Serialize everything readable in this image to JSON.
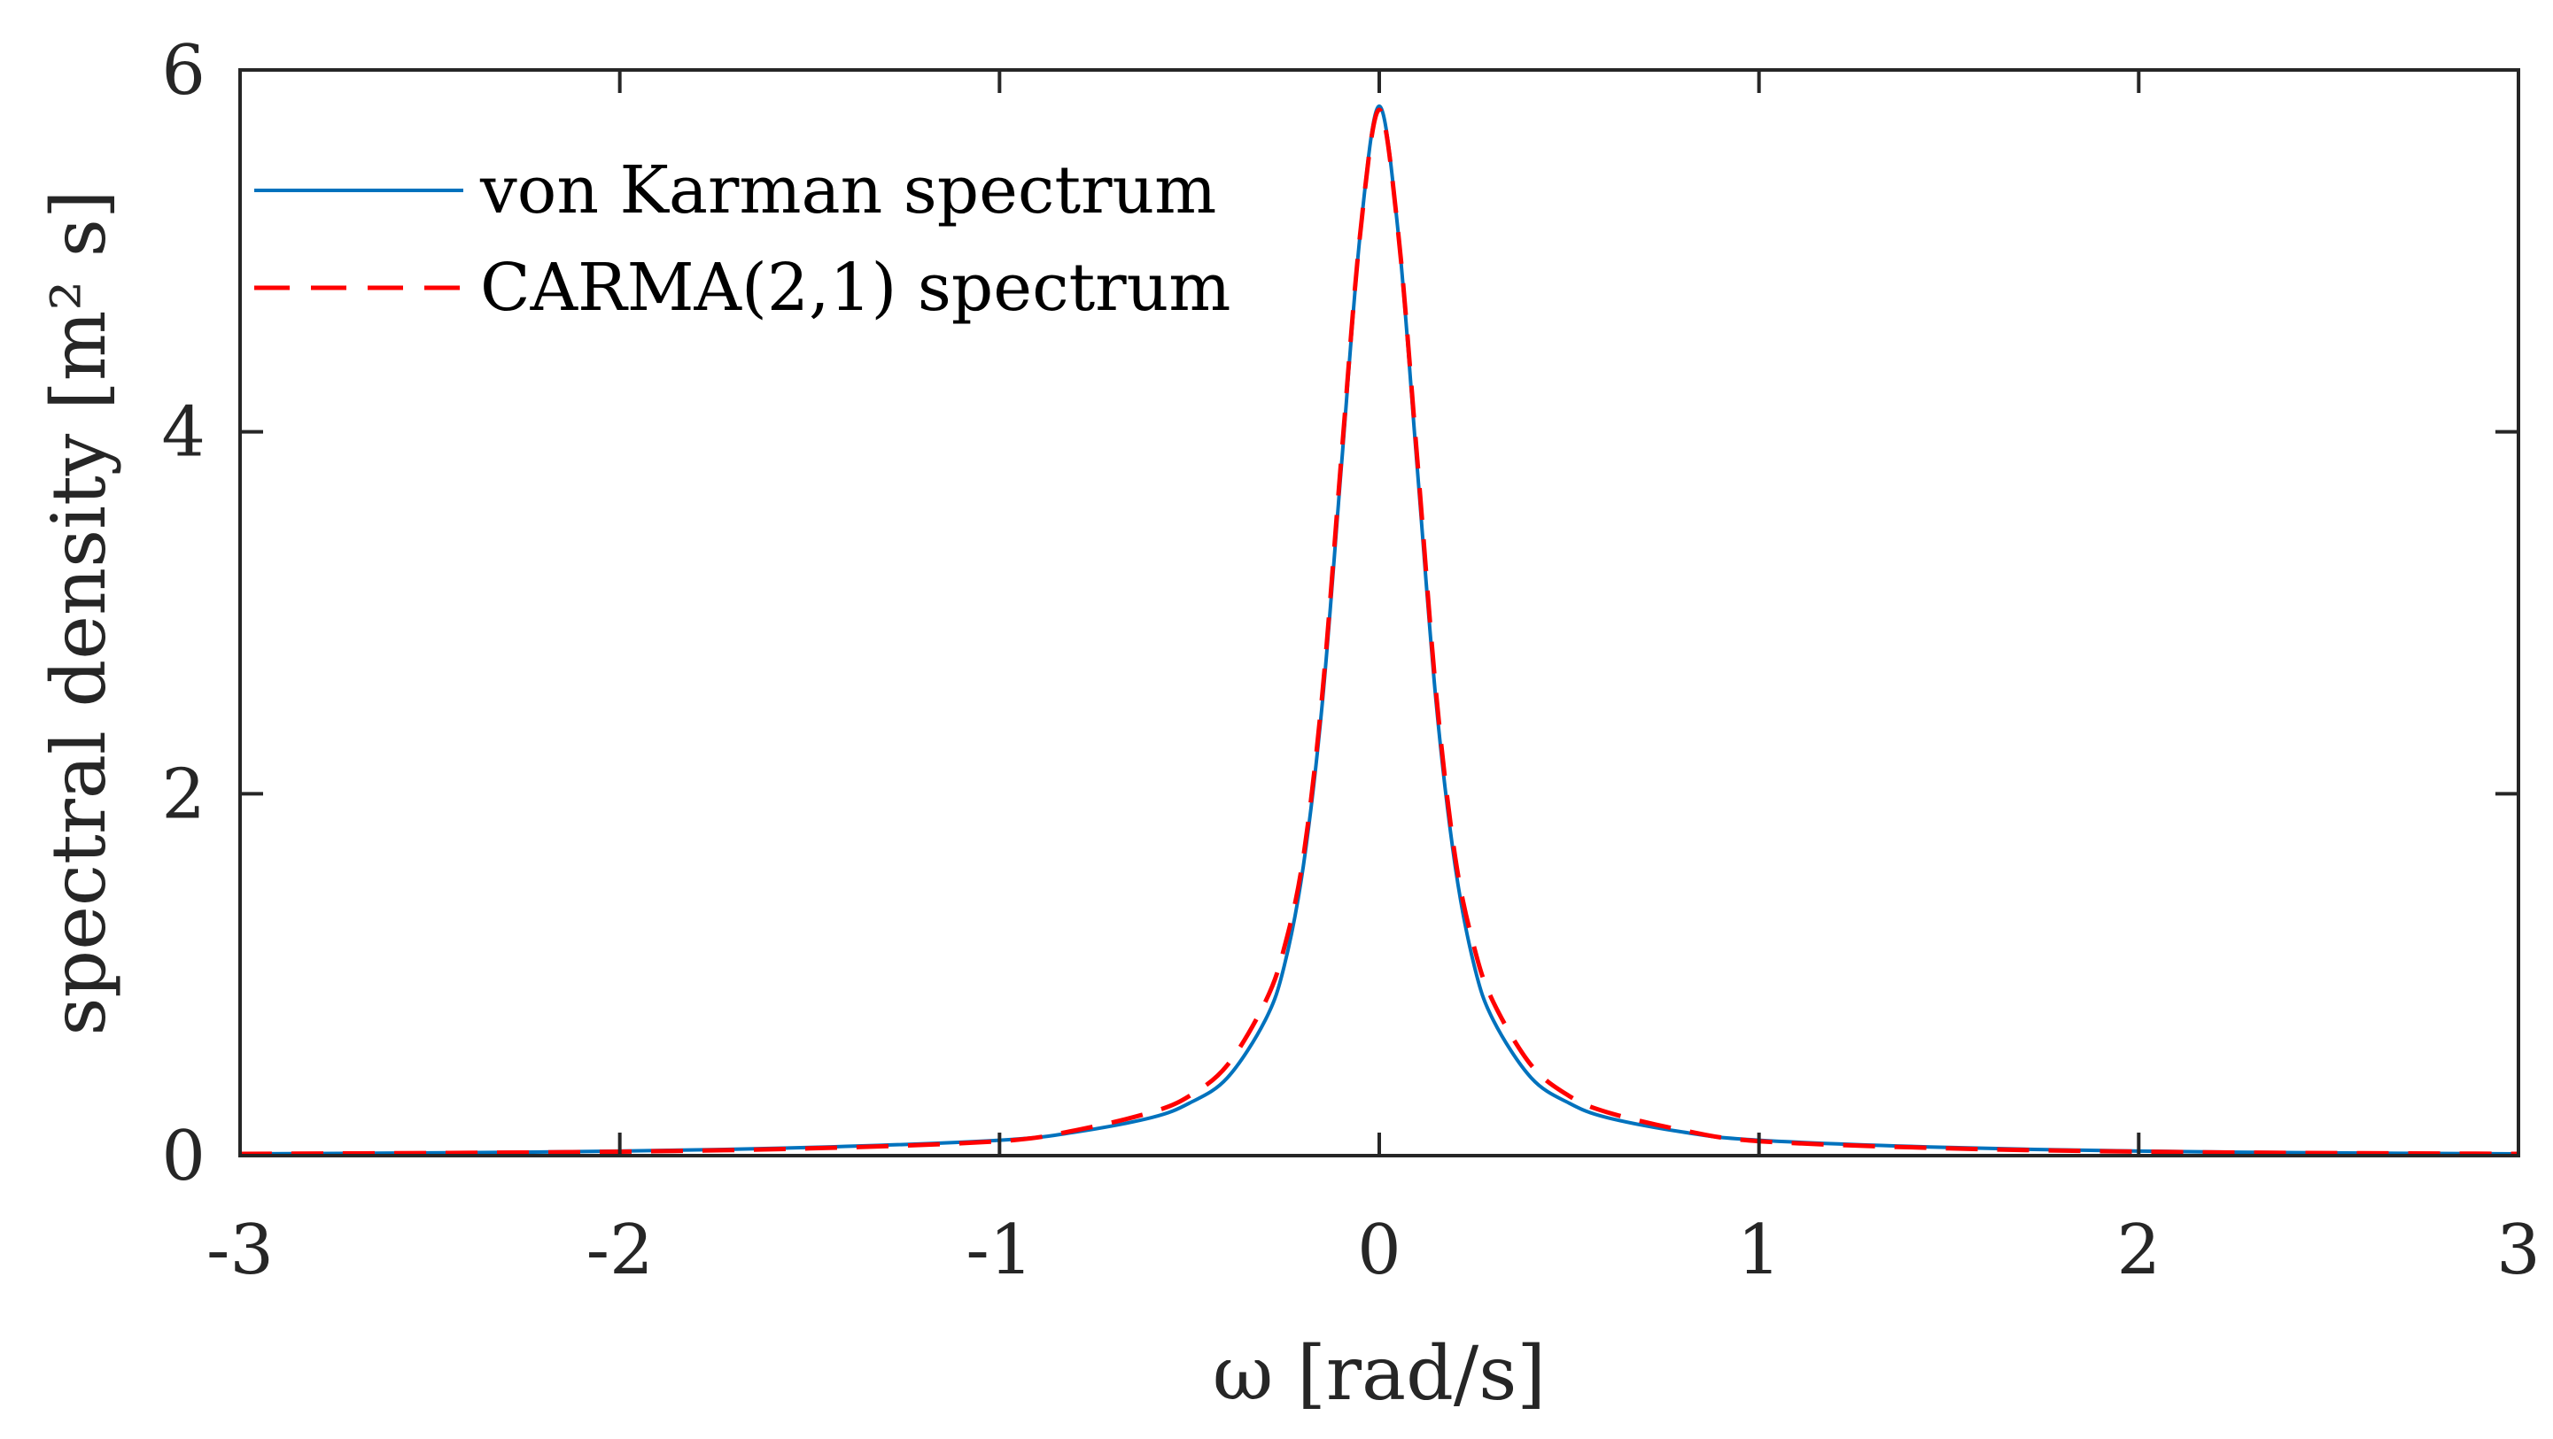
{
  "chart_data": {
    "type": "line",
    "title": "",
    "xlabel": "ω [rad/s]",
    "ylabel": "spectral density [m² s]",
    "xlim": [
      -3,
      3
    ],
    "ylim": [
      0,
      6
    ],
    "xticks": [
      -3,
      -2,
      -1,
      0,
      1,
      2,
      3
    ],
    "xtick_labels": [
      "-3",
      "-2",
      "-1",
      "0",
      "1",
      "2",
      "3"
    ],
    "yticks": [
      0,
      2,
      4,
      6
    ],
    "ytick_labels": [
      "0",
      "2",
      "4",
      "6"
    ],
    "grid": false,
    "legend_position": "top-left",
    "series": [
      {
        "name": "von Karman spectrum",
        "style": "solid",
        "color": "#0072BD",
        "x": [
          -3.0,
          -2.5,
          -2.0,
          -1.5,
          -1.0,
          -0.8,
          -0.6,
          -0.5,
          -0.4,
          -0.3,
          -0.25,
          -0.2,
          -0.15,
          -0.1,
          -0.05,
          0.0,
          0.05,
          0.1,
          0.15,
          0.2,
          0.25,
          0.3,
          0.4,
          0.5,
          0.6,
          0.8,
          1.0,
          1.5,
          2.0,
          2.5,
          3.0
        ],
        "y": [
          0.01,
          0.015,
          0.025,
          0.045,
          0.085,
          0.13,
          0.21,
          0.29,
          0.43,
          0.75,
          1.05,
          1.6,
          2.5,
          3.8,
          5.1,
          5.8,
          5.1,
          3.8,
          2.5,
          1.6,
          1.05,
          0.75,
          0.43,
          0.29,
          0.21,
          0.13,
          0.085,
          0.045,
          0.025,
          0.015,
          0.01
        ]
      },
      {
        "name": "CARMA(2,1) spectrum",
        "style": "dashed",
        "color": "#FF0000",
        "x": [
          -3.0,
          -2.5,
          -2.0,
          -1.5,
          -1.0,
          -0.8,
          -0.6,
          -0.5,
          -0.4,
          -0.3,
          -0.25,
          -0.2,
          -0.15,
          -0.1,
          -0.05,
          0.0,
          0.05,
          0.1,
          0.15,
          0.2,
          0.25,
          0.3,
          0.4,
          0.5,
          0.6,
          0.8,
          1.0,
          1.5,
          2.0,
          2.5,
          3.0
        ],
        "y": [
          0.01,
          0.014,
          0.022,
          0.04,
          0.08,
          0.14,
          0.24,
          0.33,
          0.5,
          0.85,
          1.15,
          1.65,
          2.55,
          3.85,
          5.1,
          5.78,
          5.1,
          3.85,
          2.55,
          1.65,
          1.15,
          0.85,
          0.5,
          0.33,
          0.24,
          0.14,
          0.08,
          0.04,
          0.022,
          0.014,
          0.01
        ]
      }
    ]
  }
}
